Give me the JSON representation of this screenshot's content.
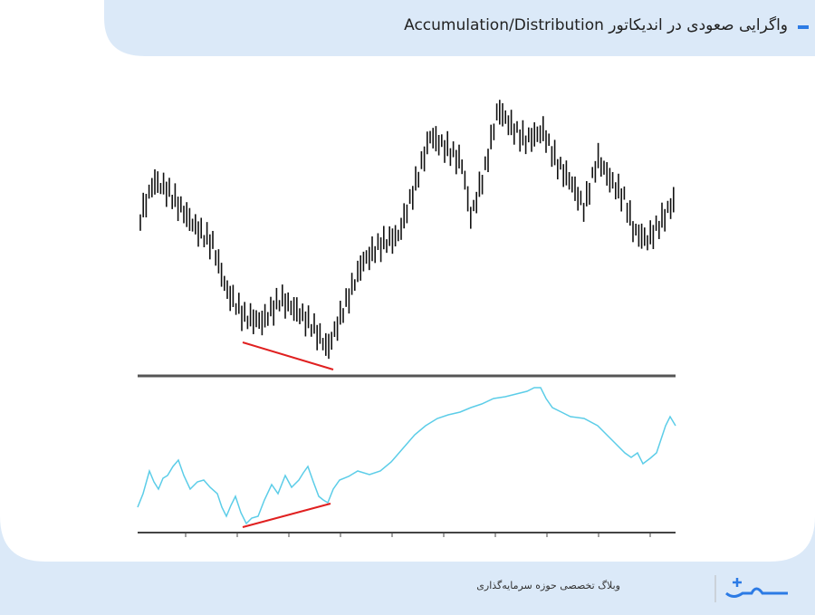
{
  "header": {
    "title": "واگرایی صعودی در اندیکاتور Accumulation/Distribution"
  },
  "footer": {
    "text": "وبلاگ تخصصی حوزه سرمایه‌گذاری"
  }
}
